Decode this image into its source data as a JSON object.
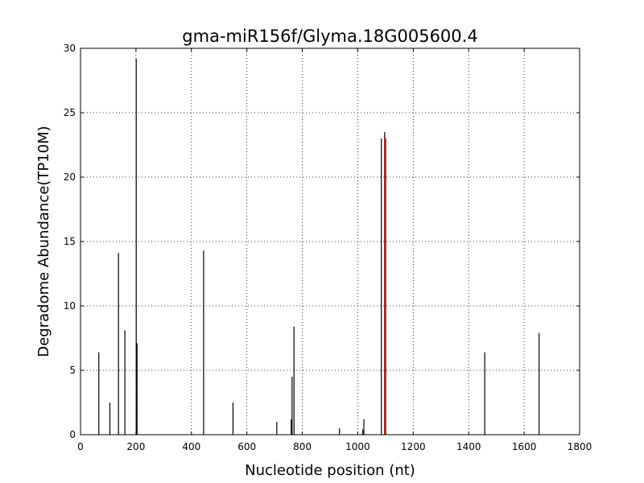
{
  "chart_data": {
    "type": "bar",
    "title": "gma-miR156f/Glyma.18G005600.4",
    "xlabel": "Nucleotide position (nt)",
    "ylabel": "Degradome Abundance(TP10M)",
    "xlim": [
      0,
      1800
    ],
    "ylim": [
      0,
      30
    ],
    "xticks": [
      "0",
      "200",
      "400",
      "600",
      "800",
      "1000",
      "1200",
      "1400",
      "1600",
      "1800"
    ],
    "yticks": [
      "0",
      "5",
      "10",
      "15",
      "20",
      "25",
      "30"
    ],
    "grid": true,
    "series": [
      {
        "color": "#000000",
        "x": [
          66,
          106,
          137,
          160,
          201,
          204,
          444,
          550,
          708,
          760,
          763,
          770,
          934,
          1018,
          1022,
          1085,
          1097,
          1458,
          1654
        ],
        "values": [
          6.4,
          2.5,
          14.1,
          8.1,
          29.2,
          7.1,
          14.3,
          2.5,
          1.0,
          1.2,
          4.5,
          8.4,
          0.5,
          0.4,
          1.2,
          23.0,
          23.5,
          6.4,
          7.9
        ]
      },
      {
        "color": "#ff0000",
        "x": [
          1100
        ],
        "values": [
          23.0
        ]
      }
    ]
  }
}
